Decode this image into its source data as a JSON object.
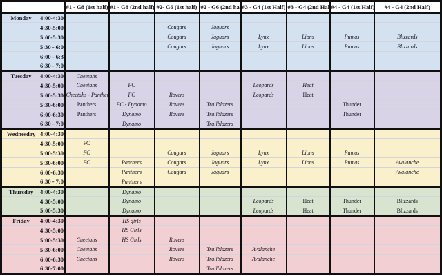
{
  "columns": [
    "#1 - G8 (1st half)",
    "#1 - G8 (2nd half)",
    "#2- G6 (1st half)",
    "#2 - G6 (2nd half)",
    "#3 - G4 (1st Half)",
    "#3 - G4 (2nd Half)",
    "#4 - G4 (1st Half)",
    "#4 - G4 (2nd Half)"
  ],
  "colors": {
    "monday": "#d3e1f1",
    "tuesday": "#d8d3e6",
    "wednesday": "#faf0cc",
    "thursday": "#d8e4d0",
    "friday": "#f1cfd3",
    "border": "#101010",
    "header_bg": "#ffffff"
  },
  "days": [
    {
      "name": "Monday",
      "key": "monday",
      "rows": [
        {
          "time": "4:00-4:30 PM",
          "cells": [
            "",
            "",
            "",
            "",
            "",
            "",
            "",
            ""
          ]
        },
        {
          "time": "4:30-5:00 PM",
          "cells": [
            "",
            "",
            "Cougars",
            "Jaguars",
            "",
            "",
            "",
            ""
          ]
        },
        {
          "time": "5:00-5:30 PM",
          "cells": [
            "",
            "",
            "Cougars",
            "Jaguars",
            "Lynx",
            "Lions",
            "Pumas",
            "Blizzards"
          ]
        },
        {
          "time": "5:30 - 6:00 PM",
          "cells": [
            "",
            "",
            "Cougars",
            "Jaguars",
            "Lynx",
            "Lions",
            "Pumas",
            "Blizzards"
          ]
        },
        {
          "time": "6:00 - 6:30 PM",
          "cells": [
            "",
            "",
            "",
            "",
            "",
            "",
            "",
            ""
          ]
        },
        {
          "time": "6:30 - 7:00 PM",
          "cells": [
            "",
            "",
            "",
            "",
            "",
            "",
            "",
            ""
          ]
        }
      ]
    },
    {
      "name": "Tuesday",
      "key": "tuesday",
      "rows": [
        {
          "time": "4:00-4:30 PM",
          "cells": [
            "Cheetahs",
            "",
            "",
            "",
            "",
            "",
            "",
            ""
          ]
        },
        {
          "time": "4:30-5:00 PM",
          "cells": [
            "Cheetahs",
            "FC",
            "",
            "",
            "Leopards",
            "Heat",
            "",
            ""
          ]
        },
        {
          "time": "5:00-5:30 PM",
          "cells": [
            "Cheetahs - Panthers",
            "FC",
            "Rovers",
            "",
            "Leopards",
            {
              "text": "Heat",
              "plain": true
            },
            "",
            ""
          ]
        },
        {
          "time": "5:30-6:00PM",
          "cells": [
            {
              "text": "Panthers",
              "plain": true
            },
            "FC - Dynamo",
            "Rovers",
            "Trailblazers",
            "",
            "",
            {
              "text": "Thunder",
              "plain": true
            },
            ""
          ]
        },
        {
          "time": "6:00-6:30 PM",
          "cells": [
            {
              "text": "Panthers",
              "plain": true
            },
            "Dynamo",
            "Rovers",
            "Trailblazers",
            "",
            "",
            {
              "text": "Thunder",
              "plain": true
            },
            ""
          ]
        },
        {
          "time": "6:30 - 7:00 PM",
          "cells": [
            "",
            "Dynamo",
            "",
            "Trailblazers",
            "",
            "",
            "",
            ""
          ]
        }
      ]
    },
    {
      "name": "Wednesday",
      "key": "wednesday",
      "rows": [
        {
          "time": "4:00-4:30 PM",
          "cells": [
            "",
            "",
            "",
            "",
            "",
            "",
            "",
            ""
          ]
        },
        {
          "time": "4:30-5:00 PM",
          "cells": [
            {
              "text": "FC",
              "plain": true
            },
            "",
            "",
            "",
            "",
            "",
            "",
            ""
          ]
        },
        {
          "time": "5:00-5:30 PM",
          "cells": [
            "FC",
            "",
            "Cougars",
            "Jaguars",
            "Lynx",
            "Lions",
            "Pumas",
            ""
          ]
        },
        {
          "time": "5:30-6:00 PM",
          "cells": [
            "FC",
            "Panthers",
            "Cougars",
            "Jaguars",
            "Lynx",
            "Lions",
            "Pumas",
            "Avalanche"
          ]
        },
        {
          "time": "6:00-6:30 PM",
          "cells": [
            "",
            "Panthers",
            "Cougars",
            "Jaguars",
            "",
            "",
            "",
            "Avalanche"
          ]
        },
        {
          "time": "6:30 - 7:00 PM",
          "cells": [
            "",
            "Panthers",
            "",
            "",
            "",
            "",
            "",
            ""
          ]
        }
      ]
    },
    {
      "name": "Thursday",
      "key": "thursday",
      "rows": [
        {
          "time": "4:00-4:30 PM",
          "cells": [
            "",
            "Dynamo",
            "",
            "",
            "",
            "",
            "",
            ""
          ]
        },
        {
          "time": "4:30-5:00 PM",
          "cells": [
            "",
            "Dynamo",
            "",
            "",
            "Leopards",
            {
              "text": "Heat",
              "plain": true
            },
            {
              "text": "Thunder",
              "plain": true
            },
            {
              "text": "Blizzards",
              "plain": true
            }
          ]
        },
        {
          "time": "5:00-5:30 PM",
          "cells": [
            "",
            "Dynamo",
            "",
            "",
            "Leopards",
            {
              "text": "Heat",
              "plain": true
            },
            {
              "text": "Thunder",
              "plain": true
            },
            {
              "text": "Blizzards",
              "plain": true
            }
          ]
        }
      ]
    },
    {
      "name": "Friday",
      "key": "friday",
      "rows": [
        {
          "time": "4:00-4:30 PM",
          "cells": [
            "",
            "HS girls",
            "",
            "",
            "",
            "",
            "",
            ""
          ]
        },
        {
          "time": "4:30-5:00 PM",
          "cells": [
            "",
            "HS Girls",
            "",
            "",
            "",
            "",
            "",
            ""
          ]
        },
        {
          "time": "5:00-5:30 PM",
          "cells": [
            "Cheetahs",
            "HS Girls",
            "Rovers",
            "",
            "",
            "",
            "",
            ""
          ]
        },
        {
          "time": "5:30-6:00PM",
          "cells": [
            "Cheetahs",
            "",
            "Rovers",
            "Trailblazers",
            "Avalanche",
            "",
            "",
            ""
          ]
        },
        {
          "time": "6:00-6:30 PM",
          "cells": [
            "Cheetahs",
            "",
            "Rovers",
            "Trailblazers",
            "Avalanche",
            "",
            "",
            ""
          ]
        },
        {
          "time": "6:30-7:00 PM",
          "cells": [
            "",
            "",
            "",
            "Trailblazers",
            "",
            "",
            "",
            ""
          ]
        }
      ]
    }
  ]
}
